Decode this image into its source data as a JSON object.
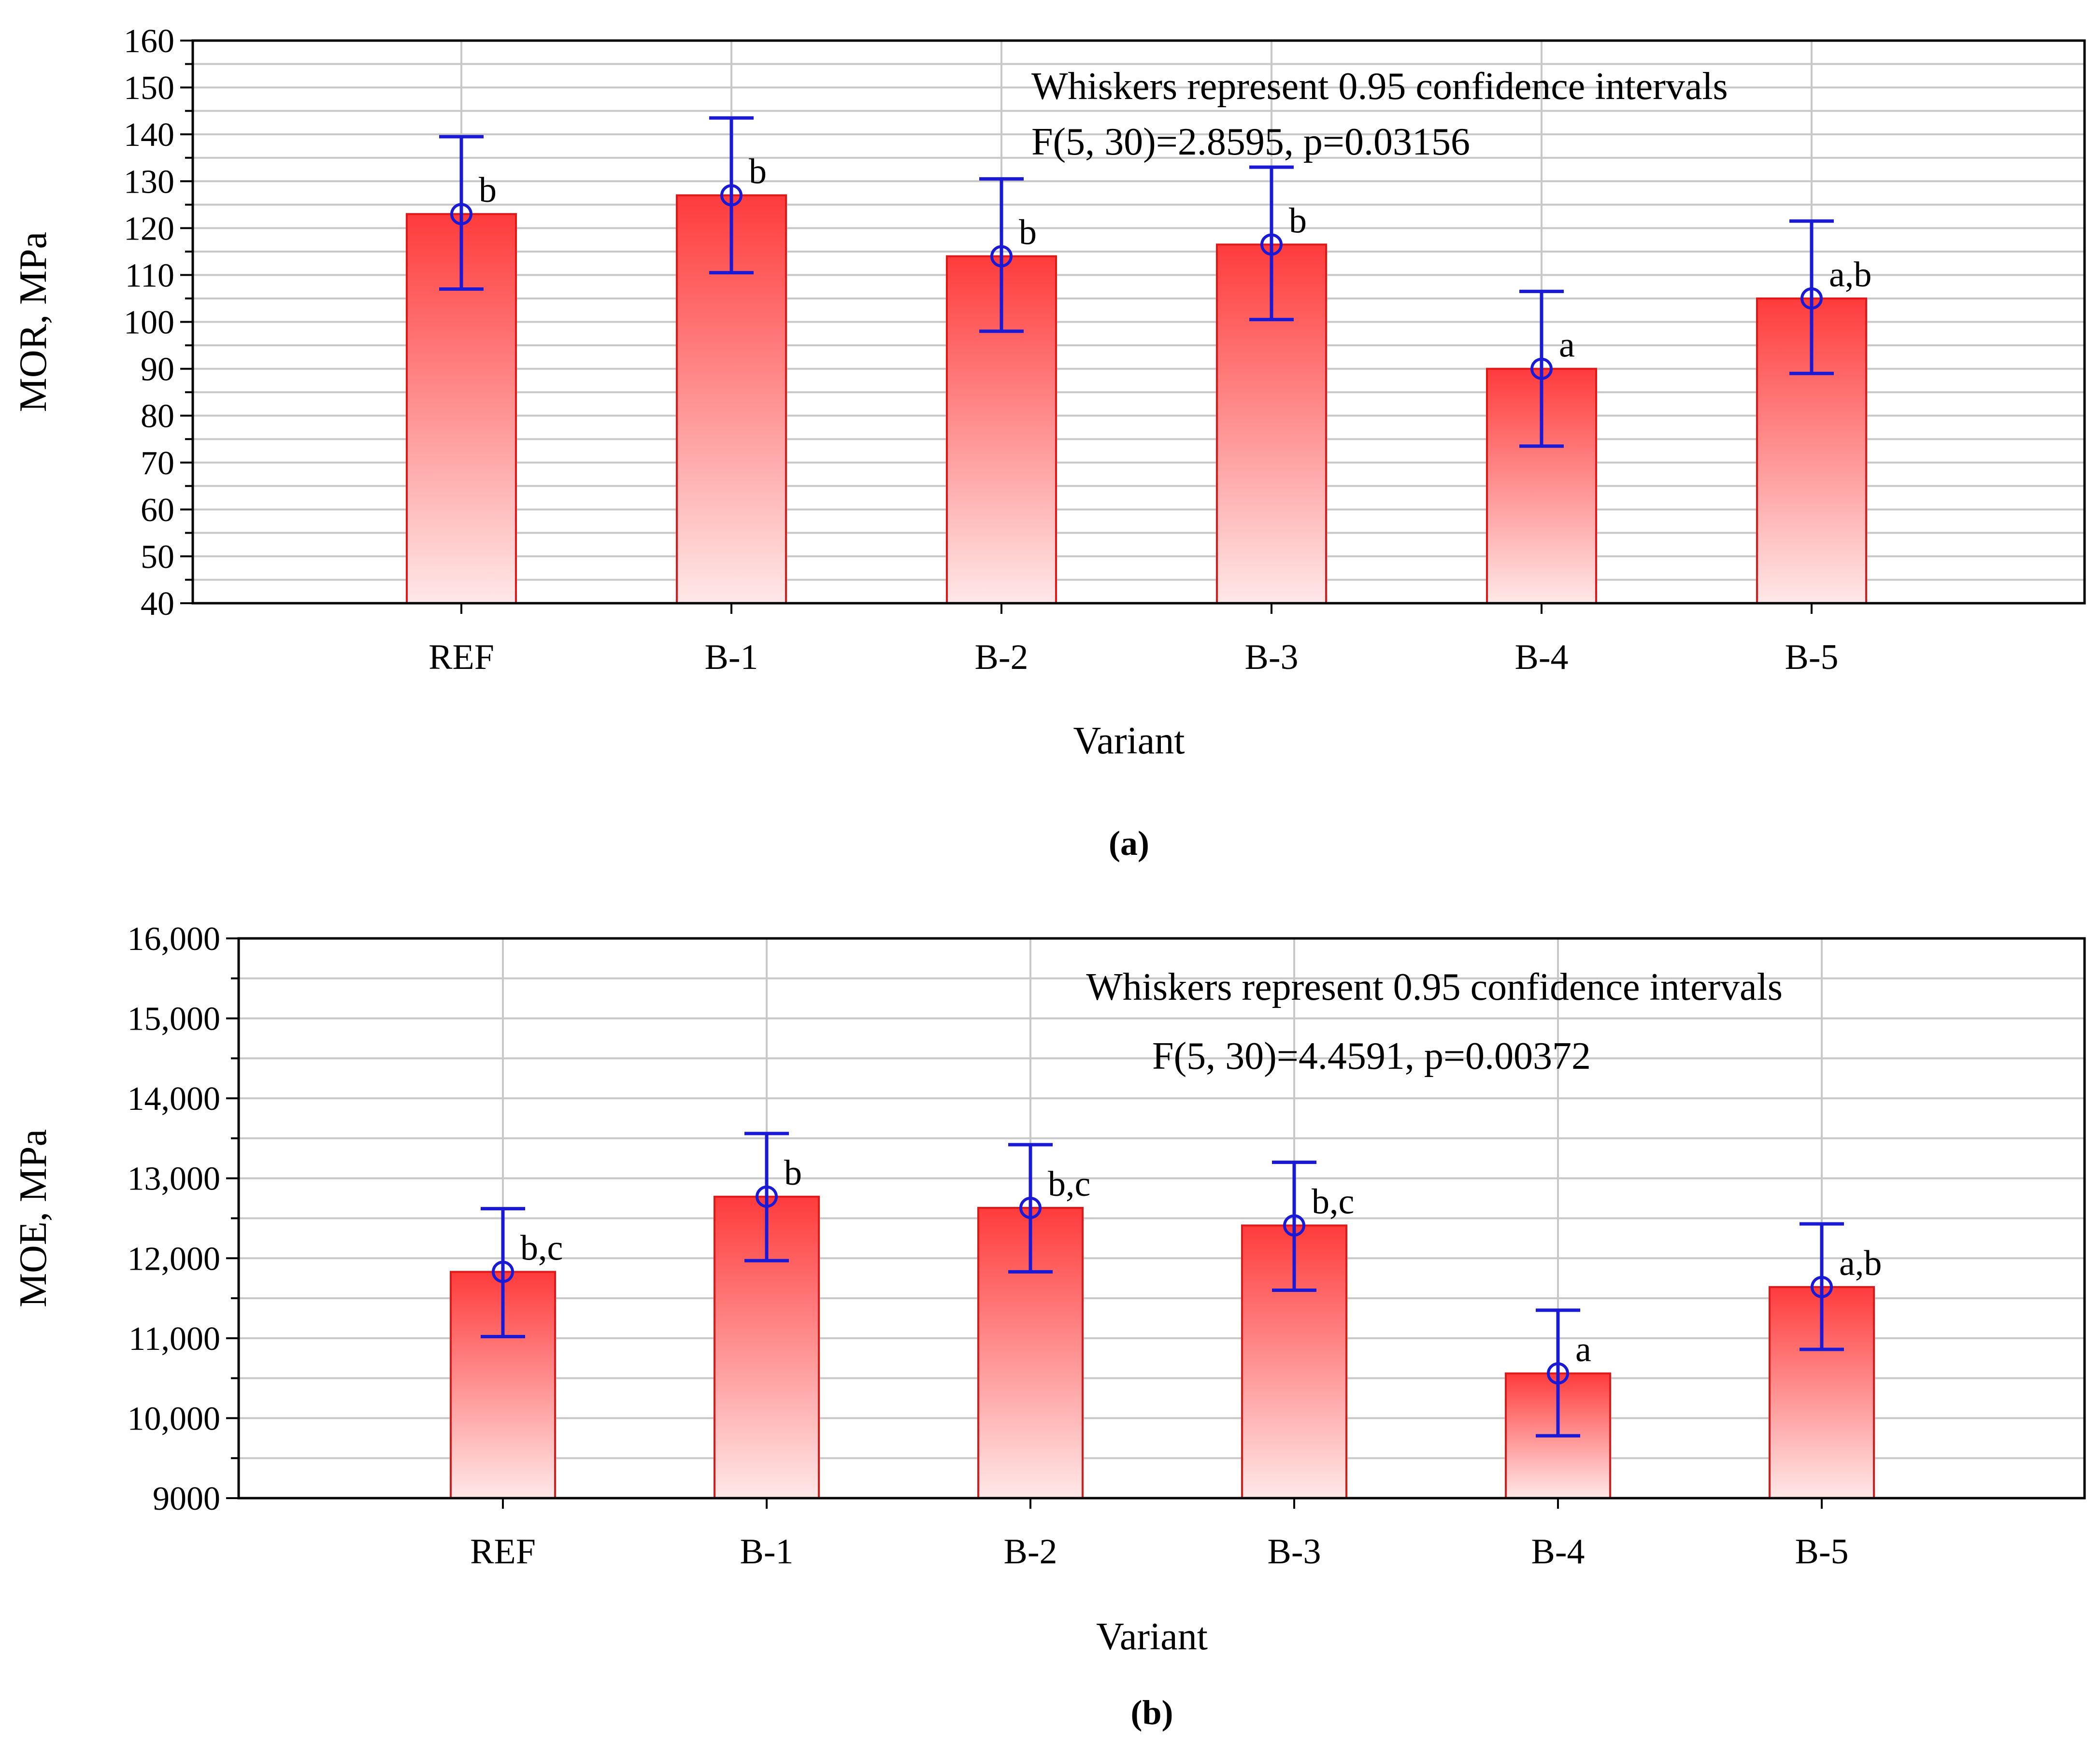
{
  "chart_data": [
    {
      "type": "bar",
      "panel_label": "(a)",
      "categories": [
        "REF",
        "B-1",
        "B-2",
        "B-3",
        "B-4",
        "B-5"
      ],
      "values": [
        123,
        127,
        114,
        116.5,
        90,
        105
      ],
      "ci_lower": [
        107,
        110.5,
        98,
        100.5,
        73.5,
        89
      ],
      "ci_upper": [
        139.5,
        143.5,
        130.5,
        133,
        106.5,
        121.5
      ],
      "group_labels": [
        "b",
        "b",
        "b",
        "b",
        "a",
        "a,b"
      ],
      "xlabel": "Variant",
      "ylabel": "MOR, MPa",
      "ylim": [
        40,
        160
      ],
      "yticks": [
        40,
        50,
        60,
        70,
        80,
        90,
        100,
        110,
        120,
        130,
        140,
        150,
        160
      ],
      "ytick_labels": [
        "40",
        "50",
        "60",
        "70",
        "80",
        "90",
        "100",
        "110",
        "120",
        "130",
        "140",
        "150",
        "160"
      ],
      "annotation_line1": "Whiskers represent 0.95 confidence intervals",
      "annotation_line2": "F(5, 30)=2.8595, p=0.03156",
      "grid": true
    },
    {
      "type": "bar",
      "panel_label": "(b)",
      "categories": [
        "REF",
        "B-1",
        "B-2",
        "B-3",
        "B-4",
        "B-5"
      ],
      "values": [
        11830,
        12770,
        12630,
        12410,
        10560,
        11640
      ],
      "ci_lower": [
        11020,
        11970,
        11830,
        11600,
        9780,
        10860
      ],
      "ci_upper": [
        12620,
        13560,
        13420,
        13200,
        11350,
        12430
      ],
      "group_labels": [
        "b,c",
        "b",
        "b,c",
        "b,c",
        "a",
        "a,b"
      ],
      "xlabel": "Variant",
      "ylabel": "MOE, MPa",
      "ylim": [
        9000,
        16000
      ],
      "yticks": [
        9000,
        10000,
        11000,
        12000,
        13000,
        14000,
        15000,
        16000
      ],
      "ytick_labels": [
        "9000",
        "10,000",
        "11,000",
        "12,000",
        "13,000",
        "14,000",
        "15,000",
        "16,000"
      ],
      "annotation_line1": "Whiskers represent 0.95 confidence intervals",
      "annotation_line2": "F(5, 30)=4.4591, p=0.00372",
      "grid": true
    }
  ],
  "colors": {
    "bar_top": "#ff3b3b",
    "bar_bottom": "#ffe8e8",
    "bar_edge": "#e01818",
    "whisker": "#1a1ad6",
    "grid": "#c8c8c8",
    "axis": "#000000",
    "text": "#000000"
  }
}
